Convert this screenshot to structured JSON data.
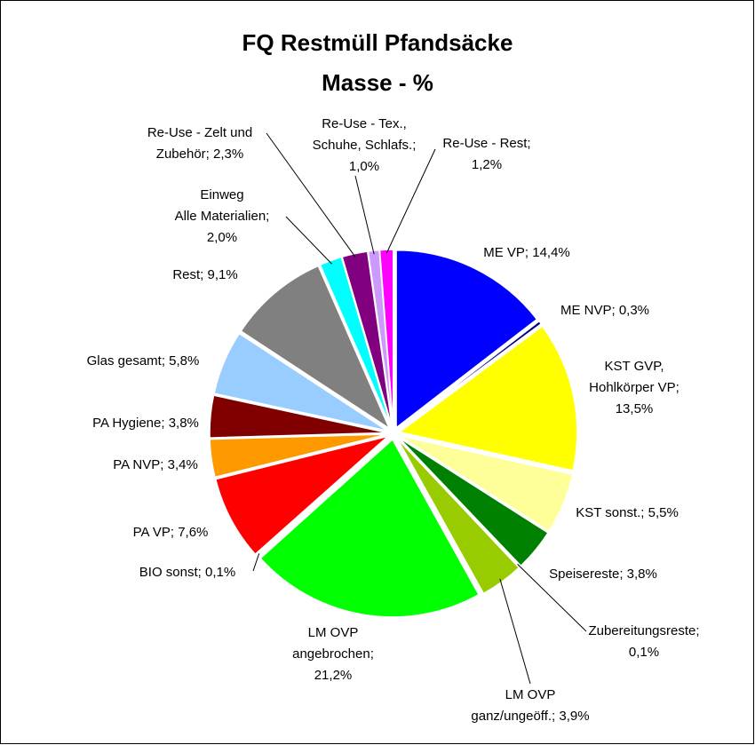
{
  "chart_data": {
    "type": "pie",
    "title": [
      "FQ Restmüll Pfandsäcke",
      "Masse - %"
    ],
    "labels": [
      [
        "ME VP; 14,4%"
      ],
      [
        "ME NVP; 0,3%"
      ],
      [
        "KST GVP,",
        "Hohlkörper VP;",
        "13,5%"
      ],
      [
        "KST sonst.; 5,5%"
      ],
      [
        "Speisereste; 3,8%"
      ],
      [
        "Zubereitungsreste;",
        "0,1%"
      ],
      [
        "LM OVP",
        "ganz/ungeöff.; 3,9%"
      ],
      [
        "LM OVP",
        "angebrochen;",
        "21,2%"
      ],
      [
        "BIO sonst; 0,1%"
      ],
      [
        "PA VP; 7,6%"
      ],
      [
        "PA NVP; 3,4%"
      ],
      [
        "PA Hygiene; 3,8%"
      ],
      [
        "Glas gesamt; 5,8%"
      ],
      [
        "Rest; 9,1%"
      ],
      [
        "Einweg",
        "Alle Materialien;",
        "2,0%"
      ],
      [
        "Re-Use - Zelt und",
        "Zubehör; 2,3%"
      ],
      [
        "Re-Use - Tex.,",
        "Schuhe, Schlafs.;",
        "1,0%"
      ],
      [
        "Re-Use - Rest;",
        "1,2%"
      ]
    ],
    "values": [
      14.4,
      0.3,
      13.5,
      5.5,
      3.8,
      0.1,
      3.9,
      21.2,
      0.1,
      7.6,
      3.4,
      3.8,
      5.8,
      9.1,
      2.0,
      2.3,
      1.0,
      1.2
    ],
    "colors": [
      "#0000ff",
      "#000080",
      "#ffff00",
      "#ffff99",
      "#008000",
      "#336600",
      "#99cc00",
      "#00ff00",
      "#663300",
      "#ff0000",
      "#ff9900",
      "#800000",
      "#99ccff",
      "#808080",
      "#00ffff",
      "#800080",
      "#cc99ff",
      "#ff00ff"
    ]
  }
}
